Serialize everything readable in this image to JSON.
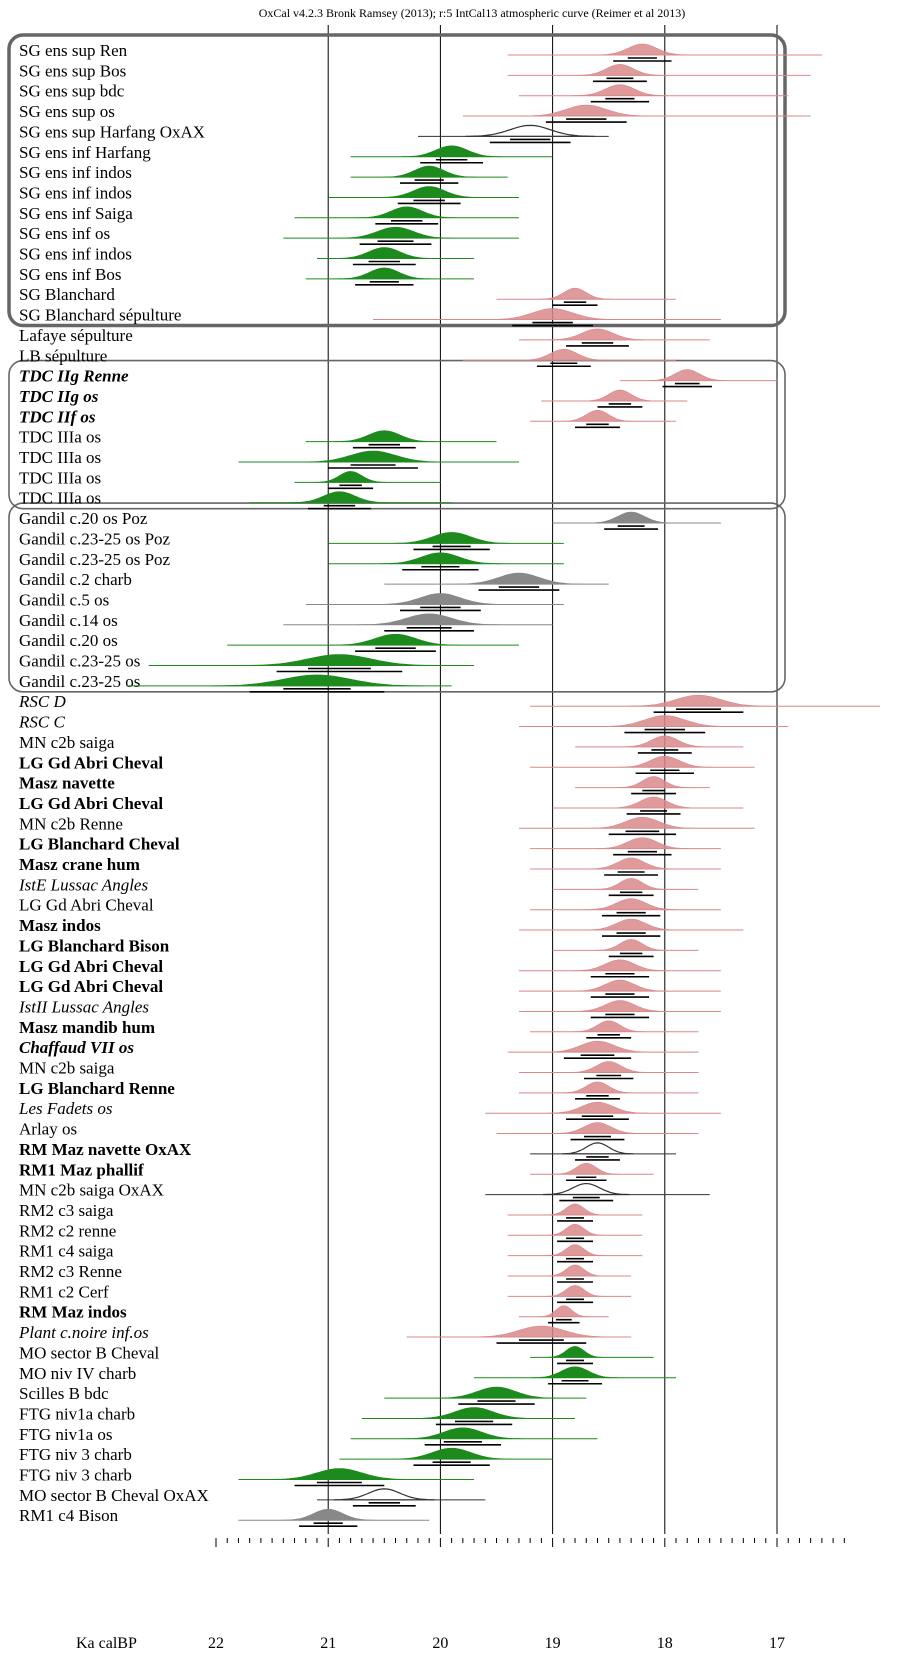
{
  "header": "OxCal v4.2.3 Bronk Ramsey (2013); r:5 IntCal13 atmospheric curve (Reimer et al 2013)",
  "chart_data": {
    "type": "ridgeline",
    "x_axis_label": "Ka calBP",
    "x_ticks": [
      22,
      21,
      20,
      19,
      18,
      17
    ],
    "x_range": [
      22.0,
      16.4
    ],
    "x_reversed": true,
    "grid_vertical": true,
    "colors": {
      "red": "#d9888b",
      "green": "#1d8a1d",
      "gray": "#888888",
      "outline": "#333333",
      "purple": "#a040a0",
      "box": "#666666"
    },
    "rows": [
      {
        "label": "SG ens sup Ren",
        "style": "normal",
        "color": "red",
        "fill": true,
        "mean": 18.2,
        "sd": 0.13,
        "range": [
          19.4,
          16.6
        ]
      },
      {
        "label": "SG ens sup Bos",
        "style": "normal",
        "color": "red",
        "fill": true,
        "mean": 18.4,
        "sd": 0.12,
        "range": [
          19.4,
          16.7
        ]
      },
      {
        "label": "SG ens sup bdc",
        "style": "normal",
        "color": "red",
        "fill": true,
        "mean": 18.4,
        "sd": 0.13,
        "range": [
          19.3,
          16.9
        ]
      },
      {
        "label": "SG ens sup os",
        "style": "normal",
        "color": "red",
        "fill": true,
        "mean": 18.7,
        "sd": 0.18,
        "range": [
          19.8,
          16.7
        ]
      },
      {
        "label": "SG ens sup Harfang OxAX",
        "style": "normal",
        "color": "outline",
        "fill": false,
        "mean": 19.2,
        "sd": 0.18,
        "range": [
          20.2,
          18.5
        ]
      },
      {
        "label": "SG ens inf Harfang",
        "style": "normal",
        "color": "green",
        "fill": true,
        "mean": 19.9,
        "sd": 0.14,
        "range": [
          20.8,
          19.0
        ]
      },
      {
        "label": "SG ens inf indos",
        "style": "normal",
        "color": "green",
        "fill": true,
        "mean": 20.1,
        "sd": 0.13,
        "range": [
          20.8,
          19.4
        ]
      },
      {
        "label": "SG ens inf indos",
        "style": "normal",
        "color": "green",
        "fill": true,
        "mean": 20.1,
        "sd": 0.14,
        "range": [
          21.0,
          19.3
        ]
      },
      {
        "label": "SG ens inf Saiga",
        "style": "normal",
        "color": "green",
        "fill": true,
        "mean": 20.3,
        "sd": 0.14,
        "range": [
          21.3,
          19.3
        ]
      },
      {
        "label": "SG ens inf os",
        "style": "normal",
        "color": "green",
        "fill": true,
        "mean": 20.4,
        "sd": 0.16,
        "range": [
          21.4,
          19.3
        ]
      },
      {
        "label": "SG ens inf indos",
        "style": "normal",
        "color": "green",
        "fill": true,
        "mean": 20.5,
        "sd": 0.14,
        "range": [
          21.1,
          19.7
        ]
      },
      {
        "label": "SG ens inf Bos",
        "style": "normal",
        "color": "green",
        "fill": true,
        "mean": 20.5,
        "sd": 0.13,
        "range": [
          21.2,
          19.7
        ]
      },
      {
        "label": "SG Blanchard",
        "style": "normal",
        "color": "red",
        "fill": true,
        "mean": 18.8,
        "sd": 0.1,
        "range": [
          19.5,
          17.9
        ]
      },
      {
        "label": "SG Blanchard sépulture",
        "style": "purple",
        "color": "red",
        "fill": true,
        "mean": 19.0,
        "sd": 0.18,
        "range": [
          20.6,
          17.5
        ]
      },
      {
        "label": "Lafaye sépulture",
        "style": "purple",
        "color": "red",
        "fill": true,
        "mean": 18.6,
        "sd": 0.14,
        "range": [
          19.3,
          17.6
        ]
      },
      {
        "label": "LB sépulture",
        "style": "purple",
        "color": "red",
        "fill": true,
        "mean": 18.9,
        "sd": 0.12,
        "range": [
          19.8,
          17.9
        ]
      },
      {
        "label": "TDC IIg Renne",
        "style": "bold-italic",
        "color": "red",
        "fill": true,
        "mean": 17.8,
        "sd": 0.11,
        "range": [
          18.4,
          17.0
        ]
      },
      {
        "label": "TDC IIg os",
        "style": "bold-italic",
        "color": "red",
        "fill": true,
        "mean": 18.4,
        "sd": 0.1,
        "range": [
          19.1,
          17.8
        ]
      },
      {
        "label": "TDC IIf os",
        "style": "bold-italic",
        "color": "red",
        "fill": true,
        "mean": 18.6,
        "sd": 0.1,
        "range": [
          19.2,
          17.9
        ]
      },
      {
        "label": "TDC IIIa os",
        "style": "normal",
        "color": "green",
        "fill": true,
        "mean": 20.5,
        "sd": 0.14,
        "range": [
          21.2,
          19.5
        ]
      },
      {
        "label": "TDC IIIa os",
        "style": "normal",
        "color": "green",
        "fill": true,
        "mean": 20.6,
        "sd": 0.2,
        "range": [
          21.8,
          19.3
        ]
      },
      {
        "label": "TDC IIIa os",
        "style": "normal",
        "color": "green",
        "fill": true,
        "mean": 20.8,
        "sd": 0.1,
        "range": [
          21.3,
          20.0
        ]
      },
      {
        "label": "TDC IIIa os",
        "style": "normal",
        "color": "green",
        "fill": true,
        "mean": 20.9,
        "sd": 0.14,
        "range": [
          21.7,
          19.9
        ]
      },
      {
        "label": "Gandil c.20 os Poz",
        "style": "normal",
        "color": "gray",
        "fill": true,
        "mean": 18.3,
        "sd": 0.12,
        "range": [
          19.0,
          17.5
        ]
      },
      {
        "label": "Gandil c.23-25 os Poz",
        "style": "normal",
        "color": "green",
        "fill": true,
        "mean": 19.9,
        "sd": 0.17,
        "range": [
          21.0,
          18.9
        ]
      },
      {
        "label": "Gandil c.23-25 os Poz",
        "style": "normal",
        "color": "green",
        "fill": true,
        "mean": 20.0,
        "sd": 0.17,
        "range": [
          21.0,
          18.9
        ]
      },
      {
        "label": "Gandil c.2 charb",
        "style": "normal",
        "color": "gray",
        "fill": true,
        "mean": 19.3,
        "sd": 0.18,
        "range": [
          20.5,
          18.5
        ]
      },
      {
        "label": "Gandil c.5 os",
        "style": "normal",
        "color": "gray",
        "fill": true,
        "mean": 20.0,
        "sd": 0.18,
        "range": [
          21.2,
          18.9
        ]
      },
      {
        "label": "Gandil c.14 os",
        "style": "normal",
        "color": "gray",
        "fill": true,
        "mean": 20.1,
        "sd": 0.2,
        "range": [
          21.4,
          19.0
        ]
      },
      {
        "label": "Gandil c.20 os",
        "style": "normal",
        "color": "green",
        "fill": true,
        "mean": 20.4,
        "sd": 0.18,
        "range": [
          21.9,
          19.3
        ]
      },
      {
        "label": "Gandil c.23-25 os",
        "style": "normal",
        "color": "green",
        "fill": true,
        "mean": 20.9,
        "sd": 0.28,
        "range": [
          22.6,
          19.7
        ]
      },
      {
        "label": "Gandil c.23-25 os",
        "style": "normal",
        "color": "green",
        "fill": true,
        "mean": 21.1,
        "sd": 0.3,
        "range": [
          22.8,
          19.9
        ]
      },
      {
        "label": "RSC D",
        "style": "italic",
        "color": "red",
        "fill": true,
        "mean": 17.7,
        "sd": 0.2,
        "range": [
          19.2,
          16.0
        ]
      },
      {
        "label": "RSC C",
        "style": "italic",
        "color": "red",
        "fill": true,
        "mean": 18.0,
        "sd": 0.18,
        "range": [
          19.3,
          16.9
        ]
      },
      {
        "label": "MN c2b saiga",
        "style": "normal",
        "color": "red",
        "fill": true,
        "mean": 18.0,
        "sd": 0.12,
        "range": [
          18.8,
          17.3
        ]
      },
      {
        "label": "LG Gd Abri Cheval",
        "style": "bold",
        "color": "red",
        "fill": true,
        "mean": 18.0,
        "sd": 0.13,
        "range": [
          19.2,
          17.2
        ]
      },
      {
        "label": "Masz navette",
        "style": "bold",
        "color": "red",
        "fill": true,
        "mean": 18.1,
        "sd": 0.1,
        "range": [
          18.8,
          17.6
        ]
      },
      {
        "label": "LG Gd Abri Cheval",
        "style": "bold",
        "color": "red",
        "fill": true,
        "mean": 18.1,
        "sd": 0.12,
        "range": [
          19.0,
          17.3
        ]
      },
      {
        "label": "MN c2b Renne",
        "style": "normal",
        "color": "red",
        "fill": true,
        "mean": 18.2,
        "sd": 0.15,
        "range": [
          19.3,
          17.2
        ]
      },
      {
        "label": "LG Blanchard Cheval",
        "style": "bold",
        "color": "red",
        "fill": true,
        "mean": 18.2,
        "sd": 0.13,
        "range": [
          19.2,
          17.5
        ]
      },
      {
        "label": "Masz crane hum",
        "style": "bold",
        "color": "red",
        "fill": true,
        "mean": 18.3,
        "sd": 0.12,
        "range": [
          19.2,
          17.5
        ]
      },
      {
        "label": "IstE Lussac Angles",
        "style": "italic",
        "color": "red",
        "fill": true,
        "mean": 18.3,
        "sd": 0.1,
        "range": [
          19.0,
          17.7
        ]
      },
      {
        "label": "LG Gd Abri Cheval",
        "style": "normal",
        "color": "red",
        "fill": true,
        "mean": 18.3,
        "sd": 0.13,
        "range": [
          19.2,
          17.5
        ]
      },
      {
        "label": "Masz indos",
        "style": "bold",
        "color": "red",
        "fill": true,
        "mean": 18.3,
        "sd": 0.13,
        "range": [
          19.3,
          17.3
        ]
      },
      {
        "label": "LG Blanchard Bison",
        "style": "bold",
        "color": "red",
        "fill": true,
        "mean": 18.3,
        "sd": 0.1,
        "range": [
          19.0,
          17.7
        ]
      },
      {
        "label": "LG Gd Abri Cheval",
        "style": "bold",
        "color": "red",
        "fill": true,
        "mean": 18.4,
        "sd": 0.13,
        "range": [
          19.3,
          17.5
        ]
      },
      {
        "label": "LG Gd Abri Cheval",
        "style": "bold",
        "color": "red",
        "fill": true,
        "mean": 18.4,
        "sd": 0.13,
        "range": [
          19.3,
          17.5
        ]
      },
      {
        "label": "IstII Lussac Angles",
        "style": "italic",
        "color": "red",
        "fill": true,
        "mean": 18.4,
        "sd": 0.13,
        "range": [
          19.3,
          17.5
        ]
      },
      {
        "label": "Masz mandib hum",
        "style": "bold",
        "color": "red",
        "fill": true,
        "mean": 18.5,
        "sd": 0.1,
        "range": [
          19.2,
          17.7
        ]
      },
      {
        "label": "Chaffaud VII os",
        "style": "bold-italic",
        "color": "red",
        "fill": true,
        "mean": 18.6,
        "sd": 0.15,
        "range": [
          19.4,
          17.7
        ]
      },
      {
        "label": "MN c2b saiga",
        "style": "normal",
        "color": "red",
        "fill": true,
        "mean": 18.5,
        "sd": 0.11,
        "range": [
          19.3,
          17.7
        ]
      },
      {
        "label": "LG Blanchard Renne",
        "style": "bold",
        "color": "red",
        "fill": true,
        "mean": 18.6,
        "sd": 0.1,
        "range": [
          19.3,
          17.7
        ]
      },
      {
        "label": "Les Fadets os",
        "style": "italic",
        "color": "red",
        "fill": true,
        "mean": 18.6,
        "sd": 0.14,
        "range": [
          19.6,
          17.5
        ]
      },
      {
        "label": "Arlay os",
        "style": "normal",
        "color": "red",
        "fill": true,
        "mean": 18.6,
        "sd": 0.12,
        "range": [
          19.5,
          17.7
        ]
      },
      {
        "label": "RM Maz navette OxAX",
        "style": "bold",
        "color": "outline",
        "fill": false,
        "mean": 18.6,
        "sd": 0.1,
        "range": [
          19.2,
          17.9
        ]
      },
      {
        "label": "RM1 Maz phallif",
        "style": "bold",
        "color": "red",
        "fill": true,
        "mean": 18.7,
        "sd": 0.09,
        "range": [
          19.2,
          18.1
        ]
      },
      {
        "label": "MN c2b saiga OxAX",
        "style": "normal",
        "color": "outline",
        "fill": false,
        "mean": 18.7,
        "sd": 0.12,
        "range": [
          19.6,
          17.6
        ]
      },
      {
        "label": "RM2 c3 saiga",
        "style": "normal",
        "color": "red",
        "fill": true,
        "mean": 18.8,
        "sd": 0.08,
        "range": [
          19.4,
          18.2
        ]
      },
      {
        "label": "RM2 c2 renne",
        "style": "normal",
        "color": "red",
        "fill": true,
        "mean": 18.8,
        "sd": 0.08,
        "range": [
          19.4,
          18.2
        ]
      },
      {
        "label": "RM1 c4 saiga",
        "style": "normal",
        "color": "red",
        "fill": true,
        "mean": 18.8,
        "sd": 0.08,
        "range": [
          19.4,
          18.2
        ]
      },
      {
        "label": "RM2 c3 Renne",
        "style": "normal",
        "color": "red",
        "fill": true,
        "mean": 18.8,
        "sd": 0.08,
        "range": [
          19.4,
          18.3
        ]
      },
      {
        "label": "RM1 c2 Cerf",
        "style": "normal",
        "color": "red",
        "fill": true,
        "mean": 18.8,
        "sd": 0.08,
        "range": [
          19.4,
          18.3
        ]
      },
      {
        "label": "RM Maz indos",
        "style": "bold",
        "color": "red",
        "fill": true,
        "mean": 18.9,
        "sd": 0.07,
        "range": [
          19.3,
          18.5
        ]
      },
      {
        "label": "Plant c.noire inf.os",
        "style": "italic",
        "color": "red",
        "fill": true,
        "mean": 19.1,
        "sd": 0.2,
        "range": [
          20.3,
          18.3
        ]
      },
      {
        "label": "MO sector B Cheval",
        "style": "normal",
        "color": "green",
        "fill": true,
        "mean": 18.8,
        "sd": 0.08,
        "range": [
          19.2,
          18.1
        ]
      },
      {
        "label": "MO niv IV charb",
        "style": "normal",
        "color": "green",
        "fill": true,
        "mean": 18.8,
        "sd": 0.12,
        "range": [
          19.7,
          17.9
        ]
      },
      {
        "label": "Scilles B bdc",
        "style": "normal",
        "color": "green",
        "fill": true,
        "mean": 19.5,
        "sd": 0.17,
        "range": [
          20.5,
          18.7
        ]
      },
      {
        "label": "FTG niv1a charb",
        "style": "normal",
        "color": "green",
        "fill": true,
        "mean": 19.7,
        "sd": 0.17,
        "range": [
          20.7,
          18.8
        ]
      },
      {
        "label": "FTG niv1a os",
        "style": "normal",
        "color": "green",
        "fill": true,
        "mean": 19.8,
        "sd": 0.17,
        "range": [
          20.8,
          18.6
        ]
      },
      {
        "label": "FTG niv 3 charb",
        "style": "normal",
        "color": "green",
        "fill": true,
        "mean": 19.9,
        "sd": 0.17,
        "range": [
          20.9,
          19.0
        ]
      },
      {
        "label": "FTG niv 3 charb",
        "style": "normal",
        "color": "green",
        "fill": true,
        "mean": 20.9,
        "sd": 0.2,
        "range": [
          21.8,
          19.7
        ]
      },
      {
        "label": "MO sector B Cheval OxAX",
        "style": "normal",
        "color": "outline",
        "fill": false,
        "mean": 20.5,
        "sd": 0.14,
        "range": [
          21.1,
          19.6
        ]
      },
      {
        "label": "RM1 c4 Bison",
        "style": "normal",
        "color": "gray",
        "fill": true,
        "mean": 21.0,
        "sd": 0.13,
        "range": [
          21.8,
          20.1
        ]
      }
    ],
    "group_boxes": [
      {
        "first": 0,
        "last": 13,
        "thick": true
      },
      {
        "first": 16,
        "last": 22,
        "thick": false
      },
      {
        "first": 23,
        "last": 31,
        "thick": false
      }
    ]
  }
}
